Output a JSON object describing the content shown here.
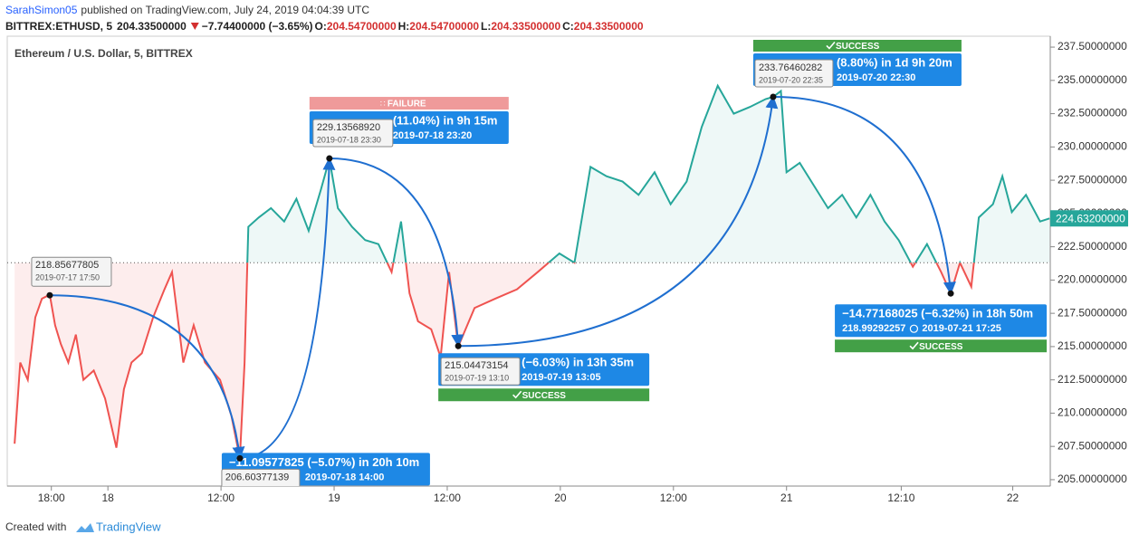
{
  "chart_data": {
    "type": "line",
    "header": {
      "author": "SarahSimon05",
      "published": "published on TradingView.com, July 24, 2019 04:04:39 UTC",
      "symbol": "BITTREX:ETHUSD, 5",
      "price": "204.33500000",
      "change": "−7.74400000 (−3.65%)",
      "ohlc": [
        {
          "label": "O:",
          "value": "204.54700000"
        },
        {
          "label": "H:",
          "value": "204.54700000"
        },
        {
          "label": "L:",
          "value": "204.33500000"
        },
        {
          "label": "C:",
          "value": "204.33500000"
        }
      ]
    },
    "title": "Ethereum / U.S. Dollar, 5, BITTREX",
    "x": [
      14.1,
      14.7,
      15.5,
      16.3,
      17.0,
      17.83,
      18.4,
      19.0,
      19.8,
      20.6,
      21.4,
      22.5,
      23.7,
      24.9,
      25.7,
      26.5,
      27.6,
      28.8,
      30.0,
      30.8,
      32.0,
      33.1,
      34.3,
      35.9,
      37.1,
      38.0,
      38.5,
      38.9,
      40.0,
      41.3,
      42.7,
      44.0,
      45.3,
      46.6,
      47.5,
      48.4,
      49.9,
      51.3,
      52.7,
      54.1,
      55.1,
      56.0,
      56.9,
      58.3,
      59.3,
      60.2,
      61.17,
      62.9,
      65.1,
      67.4,
      69.6,
      71.9,
      73.5,
      75.2,
      76.9,
      78.6,
      80.3,
      82.0,
      83.7,
      85.4,
      87.0,
      88.7,
      90.4,
      92.1,
      93.8,
      94.58,
      95.4,
      96.0,
      97.4,
      98.9,
      100.4,
      101.9,
      103.4,
      104.9,
      106.4,
      107.9,
      109.4,
      110.9,
      112.4,
      113.42,
      114.4,
      115.6,
      116.4,
      117.9,
      118.9,
      119.9,
      121.4,
      122.9,
      123.9
    ],
    "values": [
      207.7,
      213.8,
      212.5,
      217.2,
      218.6,
      218.9,
      216.6,
      215.2,
      213.8,
      215.9,
      212.5,
      213.2,
      211.1,
      207.4,
      211.8,
      213.8,
      214.5,
      217.2,
      219.3,
      220.6,
      213.8,
      216.6,
      213.8,
      212.5,
      209.8,
      206.6,
      213.8,
      224.0,
      224.7,
      225.4,
      224.4,
      226.1,
      223.7,
      226.8,
      229.1,
      225.4,
      224.0,
      223.0,
      222.7,
      220.6,
      224.4,
      219.0,
      216.9,
      216.3,
      214.2,
      220.6,
      215.0,
      217.9,
      218.6,
      219.3,
      220.6,
      222.0,
      221.3,
      228.5,
      227.8,
      227.4,
      226.4,
      228.1,
      225.7,
      227.4,
      231.5,
      234.6,
      232.5,
      233.0,
      233.6,
      233.76,
      234.2,
      228.1,
      228.8,
      227.1,
      225.4,
      226.4,
      224.7,
      226.4,
      224.4,
      223.0,
      221.0,
      222.7,
      220.6,
      219.0,
      221.3,
      219.5,
      224.7,
      225.7,
      227.8,
      225.1,
      226.4,
      224.4,
      224.63
    ],
    "baseline": 221.3,
    "color_above": "#26a69a",
    "color_below": "#ef5350",
    "last_price": 224.632,
    "last_price_label": "224.63200000",
    "xlim": [
      13.32,
      123.98
    ],
    "xticks": [
      {
        "value": 18,
        "label": "18:00"
      },
      {
        "value": 24,
        "label": "18"
      },
      {
        "value": 36,
        "label": "12:00"
      },
      {
        "value": 48,
        "label": "19"
      },
      {
        "value": 60,
        "label": "12:00"
      },
      {
        "value": 72,
        "label": "20"
      },
      {
        "value": 84,
        "label": "12:00"
      },
      {
        "value": 96,
        "label": "21"
      },
      {
        "value": 108.17,
        "label": "12:10"
      },
      {
        "value": 120,
        "label": "22"
      }
    ],
    "ylim": [
      204.52,
      238.32
    ],
    "yticks": [
      {
        "value": 205,
        "label": "205.00000000"
      },
      {
        "value": 207.5,
        "label": "207.50000000"
      },
      {
        "value": 210,
        "label": "210.00000000"
      },
      {
        "value": 212.5,
        "label": "212.50000000"
      },
      {
        "value": 215,
        "label": "215.00000000"
      },
      {
        "value": 217.5,
        "label": "217.50000000"
      },
      {
        "value": 220,
        "label": "220.00000000"
      },
      {
        "value": 222.5,
        "label": "222.50000000"
      },
      {
        "value": 225,
        "label": "225.00000000"
      },
      {
        "value": 227.5,
        "label": "227.50000000"
      },
      {
        "value": 230,
        "label": "230.00000000"
      },
      {
        "value": 232.5,
        "label": "232.50000000"
      },
      {
        "value": 235,
        "label": "235.00000000"
      },
      {
        "value": 237.5,
        "label": "237.50000000"
      }
    ],
    "annotations": [
      {
        "x": 17.83,
        "y": 218.85677805,
        "price_label": "218.85677805",
        "date_label": "2019-07-17 17:50"
      },
      {
        "x": 38.0,
        "y": 206.60377139,
        "price_label": "206.60377139",
        "measure": "−11.09577825 (−5.07%) in 20h 10m",
        "measure_date": "2019-07-18 14:00"
      },
      {
        "x": 47.5,
        "y": 229.1356892,
        "price_label": "229.13568920",
        "date_label": "2019-07-18 23:30",
        "measure": "(11.04%) in 9h 15m",
        "measure_date": "2019-07-18 23:20",
        "status": "FAILURE"
      },
      {
        "x": 61.17,
        "y": 215.04473154,
        "price_label": "215.04473154",
        "date_label": "2019-07-19 13:10",
        "measure": "(−6.03%) in 13h 35m",
        "measure_date": "2019-07-19 13:05",
        "status": "SUCCESS"
      },
      {
        "x": 94.58,
        "y": 233.76460282,
        "price_label": "233.76460282",
        "date_label": "2019-07-20 22:35",
        "measure": "(8.80%) in 1d 9h 20m",
        "measure_date": "2019-07-20 22:30",
        "status": "SUCCESS"
      },
      {
        "x": 113.42,
        "y": 218.99292257,
        "price_label": "218.99292257",
        "measure": "−14.77168025 (−6.32%) in 18h 50m",
        "measure_date": "2019-07-21 17:25",
        "status": "SUCCESS"
      }
    ],
    "footer": {
      "prefix": "Created with",
      "brand": "TradingView"
    }
  }
}
